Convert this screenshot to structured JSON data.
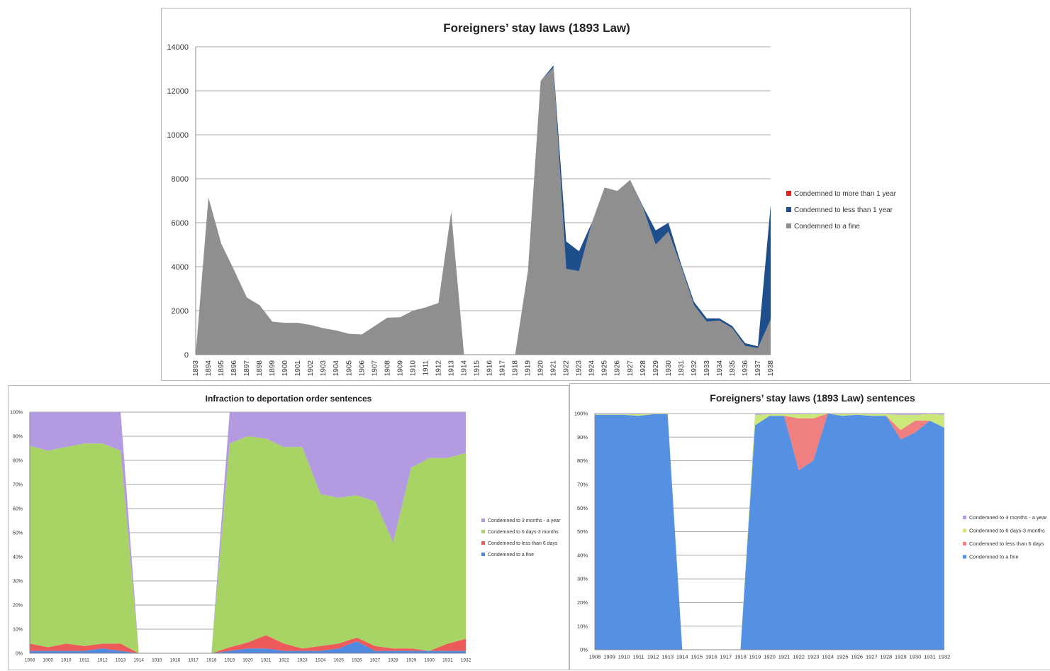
{
  "chart_data": [
    {
      "type": "area",
      "title": "Foreigners’ stay laws (1893 Law)",
      "stacked": true,
      "x": [
        "1893",
        "1894",
        "1895",
        "1896",
        "1897",
        "1898",
        "1899",
        "1900",
        "1901",
        "1902",
        "1903",
        "1904",
        "1905",
        "1906",
        "1907",
        "1908",
        "1909",
        "1910",
        "1911",
        "1912",
        "1913",
        "1914",
        "1915",
        "1916",
        "1917",
        "1918",
        "1919",
        "1920",
        "1921",
        "1922",
        "1923",
        "1924",
        "1925",
        "1926",
        "1927",
        "1928",
        "1929",
        "1930",
        "1931",
        "1932",
        "1933",
        "1934",
        "1935",
        "1936",
        "1937",
        "1938"
      ],
      "y_ticks": [
        "0",
        "2000",
        "4000",
        "6000",
        "8000",
        "10000",
        "12000",
        "14000"
      ],
      "ylim": [
        0,
        14000
      ],
      "grid": true,
      "legend_position": "right",
      "series": [
        {
          "name": "Condemned to a fine",
          "color": "#8f8f8f",
          "values": [
            0,
            7150,
            5050,
            3850,
            2600,
            2250,
            1500,
            1450,
            1450,
            1350,
            1200,
            1100,
            950,
            920,
            1300,
            1680,
            1700,
            2000,
            2150,
            2350,
            6500,
            0,
            0,
            0,
            0,
            0,
            3800,
            12450,
            13050,
            3900,
            3800,
            6000,
            7600,
            7450,
            7950,
            6700,
            5000,
            5600,
            4000,
            2250,
            1500,
            1550,
            1200,
            400,
            300,
            1600
          ]
        },
        {
          "name": "Condemned to less than 1 year",
          "color": "#1f4e8c",
          "values": [
            0,
            0,
            0,
            0,
            0,
            0,
            0,
            0,
            0,
            0,
            0,
            0,
            0,
            0,
            0,
            0,
            0,
            0,
            0,
            0,
            0,
            0,
            0,
            0,
            0,
            0,
            0,
            0,
            100,
            1250,
            900,
            0,
            0,
            0,
            0,
            50,
            650,
            400,
            100,
            150,
            150,
            100,
            100,
            120,
            80,
            5200
          ]
        },
        {
          "name": "Condemned to more than 1 year",
          "color": "#e8221b",
          "values": [
            0,
            0,
            0,
            0,
            0,
            0,
            0,
            0,
            0,
            0,
            0,
            0,
            0,
            0,
            0,
            0,
            0,
            0,
            0,
            0,
            0,
            0,
            0,
            0,
            0,
            0,
            0,
            0,
            0,
            0,
            0,
            0,
            0,
            0,
            0,
            0,
            0,
            0,
            0,
            0,
            0,
            0,
            0,
            0,
            0,
            0
          ]
        }
      ]
    },
    {
      "type": "area",
      "title": "Infraction to deportation order sentences",
      "stacked": true,
      "percent": true,
      "x": [
        "1908",
        "1909",
        "1910",
        "1911",
        "1912",
        "1913",
        "1914",
        "1915",
        "1916",
        "1917",
        "1918",
        "1919",
        "1920",
        "1921",
        "1922",
        "1923",
        "1924",
        "1925",
        "1926",
        "1927",
        "1928",
        "1929",
        "1930",
        "1931",
        "1932"
      ],
      "y_ticks": [
        "0%",
        "10%",
        "20%",
        "30%",
        "40%",
        "50%",
        "60%",
        "70%",
        "80%",
        "90%",
        "100%"
      ],
      "ylim": [
        0,
        100
      ],
      "grid": true,
      "legend_position": "right",
      "series": [
        {
          "name": "Condemned to a fine",
          "color": "#4f8ae0",
          "values": [
            1,
            1,
            1,
            1,
            2,
            1,
            0,
            0,
            0,
            0,
            0,
            1,
            2,
            2,
            1,
            1,
            1,
            2,
            5,
            1,
            1,
            1,
            1,
            1,
            1
          ]
        },
        {
          "name": "Condemned to less than 6 days",
          "color": "#ee5a5a",
          "values": [
            3,
            1.5,
            3,
            2,
            2,
            3,
            0,
            0,
            0,
            0,
            0,
            1.5,
            2.5,
            5.5,
            3,
            1,
            2,
            2,
            1.5,
            2,
            1,
            1,
            0,
            3,
            5
          ]
        },
        {
          "name": "Condemned to 6 days-3 months",
          "color": "#a8d466",
          "values": [
            82,
            81.5,
            81.5,
            84,
            83,
            80,
            0,
            0,
            0,
            0,
            0,
            84.5,
            85.5,
            81.5,
            81.5,
            83.5,
            63,
            60.5,
            59,
            60,
            44,
            75,
            80,
            77,
            77
          ]
        },
        {
          "name": "Condemned to 3 months - a year",
          "color": "#b49ae0",
          "values": [
            14,
            16,
            14.5,
            13,
            13,
            16,
            0,
            0,
            0,
            0,
            0,
            13,
            10,
            11,
            14.5,
            14.5,
            34,
            35.5,
            34.5,
            37,
            54,
            23,
            19,
            19,
            17
          ]
        }
      ]
    },
    {
      "type": "area",
      "title": "Foreigners’ stay laws (1893 Law) sentences",
      "stacked": true,
      "percent": true,
      "x": [
        "1908",
        "1909",
        "1910",
        "1911",
        "1912",
        "1913",
        "1914",
        "1915",
        "1916",
        "1917",
        "1918",
        "1919",
        "1920",
        "1921",
        "1922",
        "1923",
        "1924",
        "1925",
        "1926",
        "1927",
        "1928",
        "1929",
        "1930",
        "1931",
        "1932"
      ],
      "y_ticks": [
        "0%",
        "10%",
        "20%",
        "30%",
        "40%",
        "50%",
        "60%",
        "70%",
        "80%",
        "90%",
        "100%"
      ],
      "ylim": [
        0,
        100
      ],
      "grid": true,
      "legend_position": "right",
      "series": [
        {
          "name": "Condemned to a fine",
          "color": "#5590e2",
          "values": [
            99.5,
            99.5,
            99.5,
            99,
            99.7,
            99.7,
            0,
            0,
            0,
            0,
            0,
            95,
            99,
            99,
            76,
            80,
            100,
            99,
            99.5,
            99,
            99,
            89,
            92,
            97,
            94
          ]
        },
        {
          "name": "Condemned to less than 6 days",
          "color": "#f07f7f",
          "values": [
            0,
            0,
            0,
            0,
            0,
            0,
            0,
            0,
            0,
            0,
            0,
            0,
            0,
            0,
            22,
            18,
            0,
            0,
            0,
            0,
            0,
            4,
            5,
            0,
            0
          ]
        },
        {
          "name": "Condemned to 6 days-3 months",
          "color": "#cce77a",
          "values": [
            0.3,
            0.3,
            0.3,
            0.7,
            0.2,
            0.2,
            0,
            0,
            0,
            0,
            0,
            4.5,
            0.7,
            0.8,
            1.7,
            1.8,
            0,
            0.8,
            0.4,
            0.8,
            0.8,
            6.5,
            2.5,
            2.8,
            5.5
          ]
        },
        {
          "name": "Condemned to 3 months - a year",
          "color": "#b49ae0",
          "values": [
            0.2,
            0.2,
            0.2,
            0.3,
            0.1,
            0.1,
            0,
            0,
            0,
            0,
            0,
            0.5,
            0.3,
            0.2,
            0.3,
            0.2,
            0,
            0.2,
            0.1,
            0.2,
            0.2,
            0.5,
            0.5,
            0.2,
            0.5
          ]
        }
      ]
    }
  ]
}
